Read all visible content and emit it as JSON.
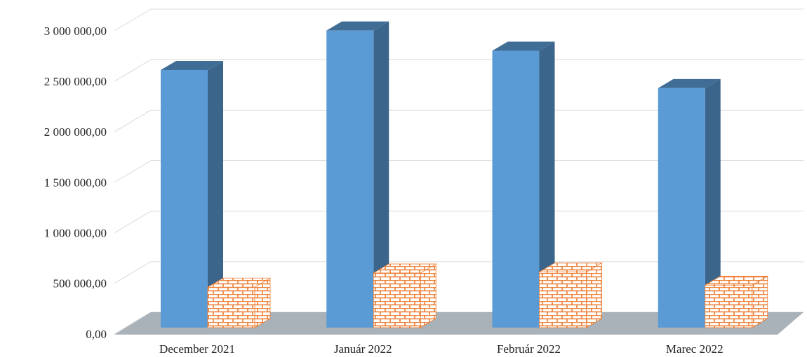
{
  "chart_data": {
    "type": "bar3d",
    "categories": [
      "December 2021",
      "Január 2022",
      "Február 2022",
      "Marec 2022"
    ],
    "series": [
      {
        "color": "#5b9bd5",
        "values": [
          2550000,
          2940000,
          2740000,
          2370000
        ]
      },
      {
        "color": "#ed7d31",
        "pattern": "brick",
        "values": [
          400000,
          540000,
          550000,
          420000
        ]
      }
    ],
    "ylim": [
      0,
      3000000
    ],
    "yticks": [
      {
        "value": 0,
        "label": "0,00"
      },
      {
        "value": 500000,
        "label": "500 000,00"
      },
      {
        "value": 1000000,
        "label": "1 000 000,00"
      },
      {
        "value": 1500000,
        "label": "1 500 000,00"
      },
      {
        "value": 2000000,
        "label": "2 000 000,00"
      },
      {
        "value": 2500000,
        "label": "2 500 000,00"
      },
      {
        "value": 3000000,
        "label": "3 000 000,00"
      }
    ],
    "grid": true
  }
}
